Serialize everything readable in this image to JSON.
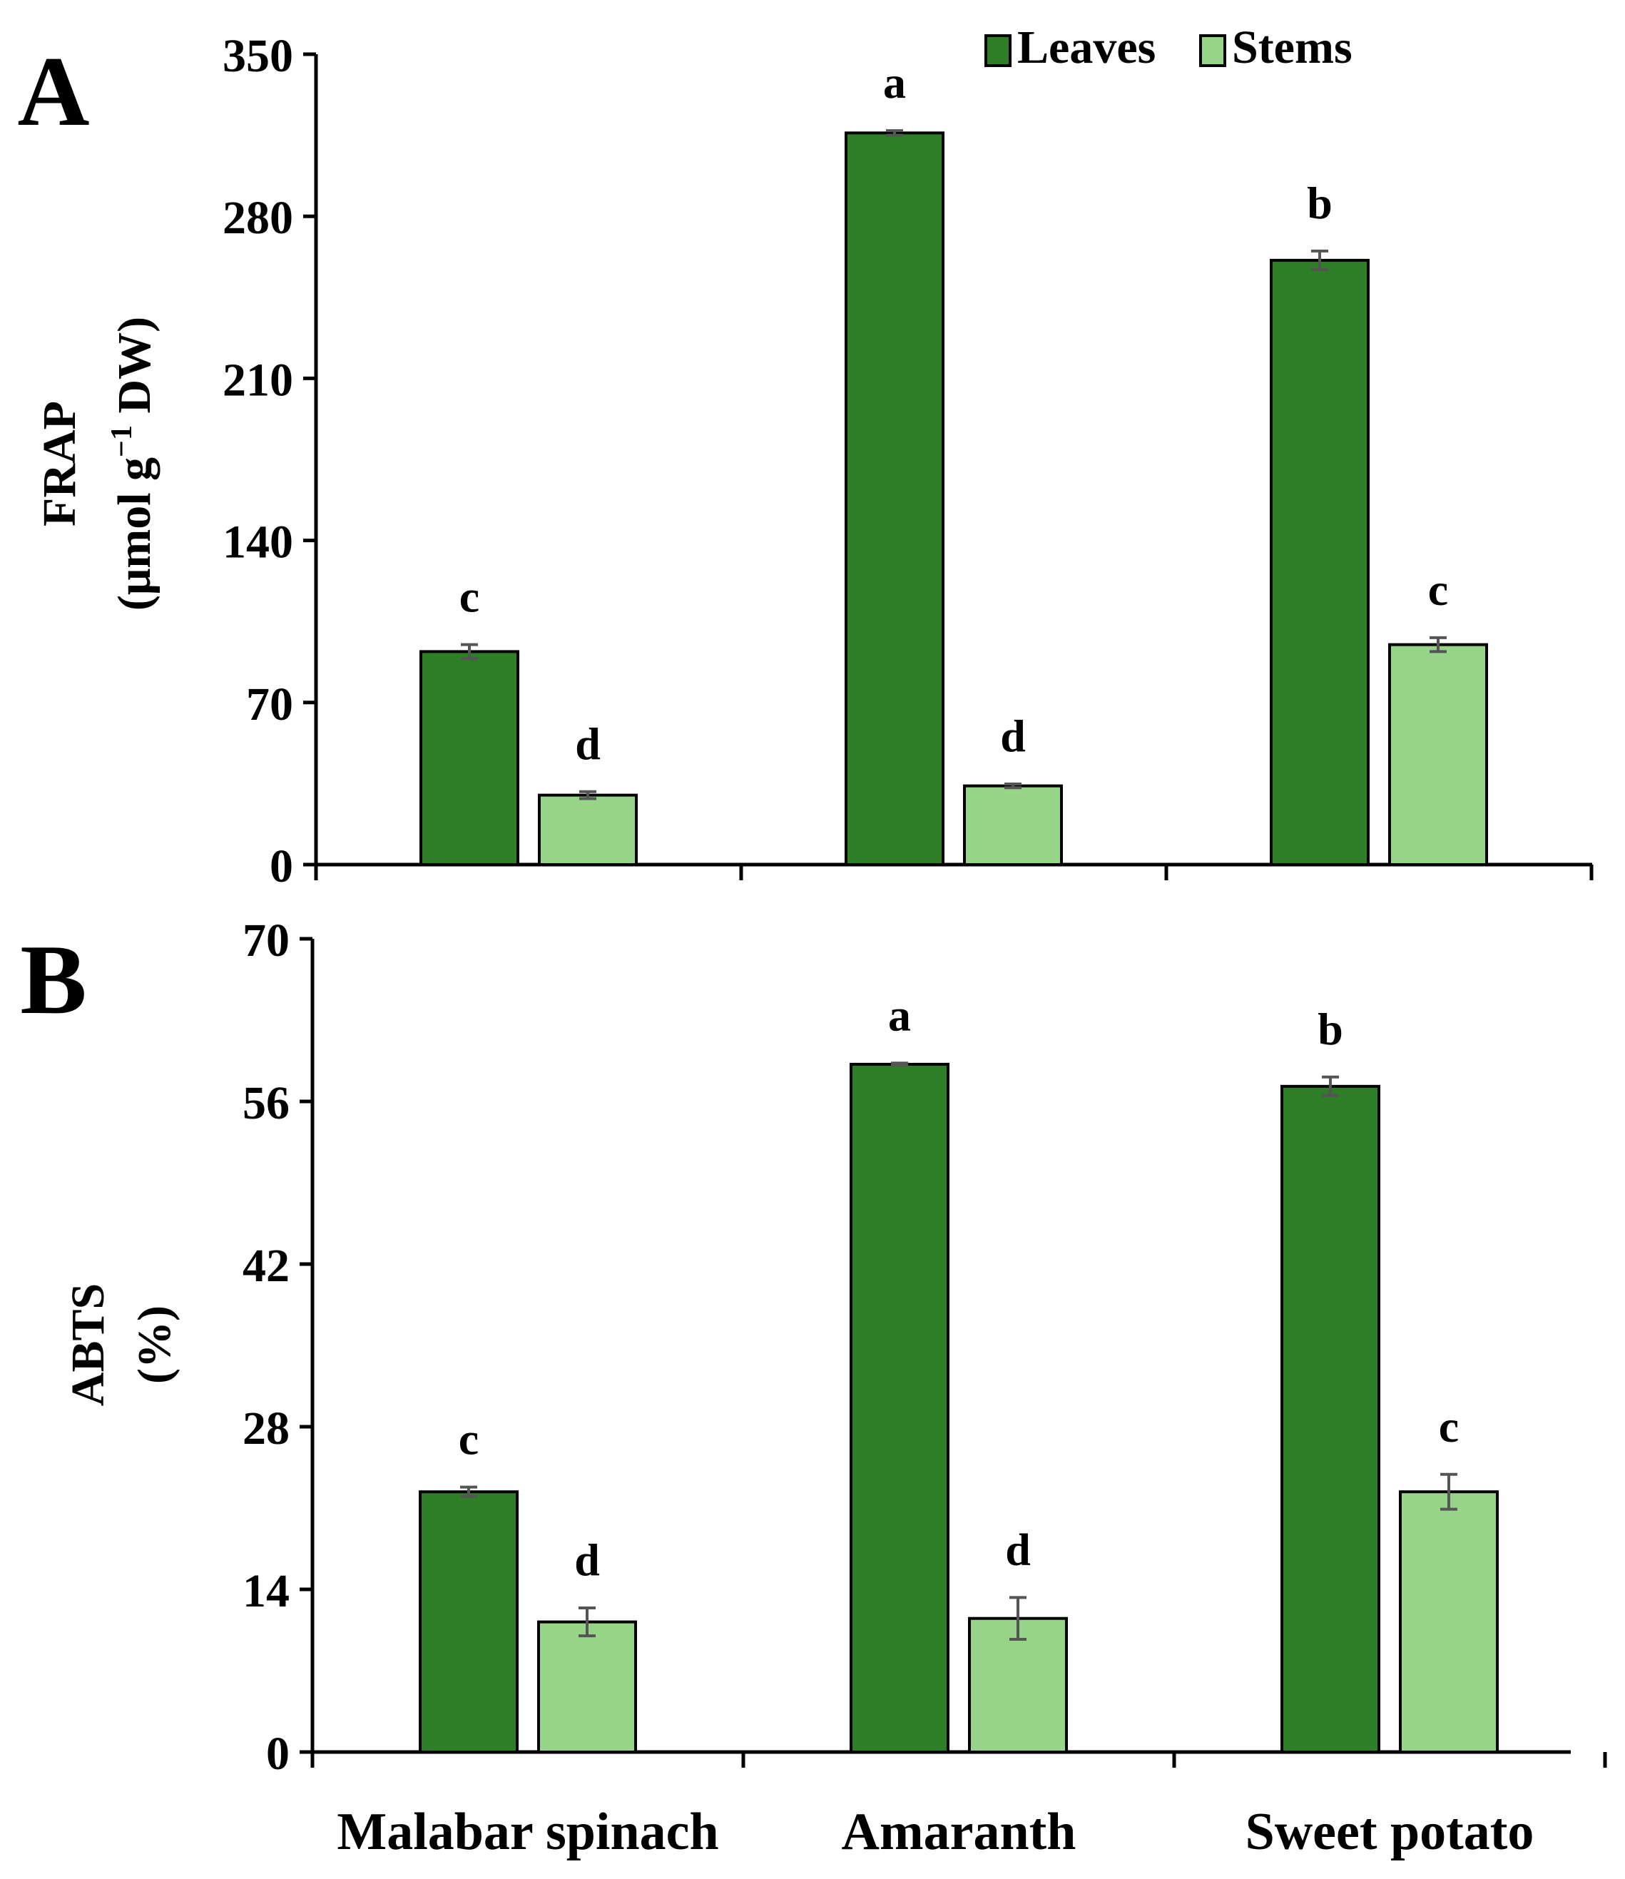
{
  "colors": {
    "leaves": "#2e7d27",
    "stems": "#96d488",
    "axis": "#000000",
    "error_bar": "#555555"
  },
  "chart_data": [
    {
      "type": "bar",
      "panel_label": "A",
      "ylabel_line1": "FRAP",
      "ylabel_line2_prefix": "(μmol g",
      "ylabel_line2_sup": "−1",
      "ylabel_line2_suffix": " DW)",
      "ylim": [
        0,
        350
      ],
      "yticks": [
        0,
        70,
        140,
        210,
        280,
        350
      ],
      "categories": [
        "Malabar spinach",
        "Amaranth",
        "Sweet potato"
      ],
      "series": [
        {
          "name": "Leaves",
          "values": [
            92,
            316,
            261
          ],
          "errors": [
            3,
            1,
            4
          ],
          "letters": [
            "c",
            "a",
            "b"
          ]
        },
        {
          "name": "Stems",
          "values": [
            30,
            34,
            95
          ],
          "errors": [
            1.5,
            0.8,
            3
          ],
          "letters": [
            "d",
            "d",
            "c"
          ]
        }
      ],
      "legend": {
        "position": "top-right",
        "entries": [
          "Leaves",
          "Stems"
        ]
      }
    },
    {
      "type": "bar",
      "panel_label": "B",
      "ylabel_line1": "ABTS",
      "ylabel_line2_prefix": "(%)",
      "ylabel_line2_sup": "",
      "ylabel_line2_suffix": "",
      "ylim": [
        0,
        70
      ],
      "yticks": [
        0,
        14,
        28,
        42,
        56,
        70
      ],
      "xlabels_visible": true,
      "categories": [
        "Malabar spinach",
        "Amaranth",
        "Sweet potato"
      ],
      "series": [
        {
          "name": "Leaves",
          "values": [
            22.4,
            59.2,
            57.3
          ],
          "errors": [
            0.4,
            0.1,
            0.8
          ],
          "letters": [
            "c",
            "a",
            "b"
          ]
        },
        {
          "name": "Stems",
          "values": [
            11.2,
            11.5,
            22.4
          ],
          "errors": [
            1.2,
            1.8,
            1.5
          ],
          "letters": [
            "d",
            "d",
            "c"
          ]
        }
      ]
    }
  ]
}
